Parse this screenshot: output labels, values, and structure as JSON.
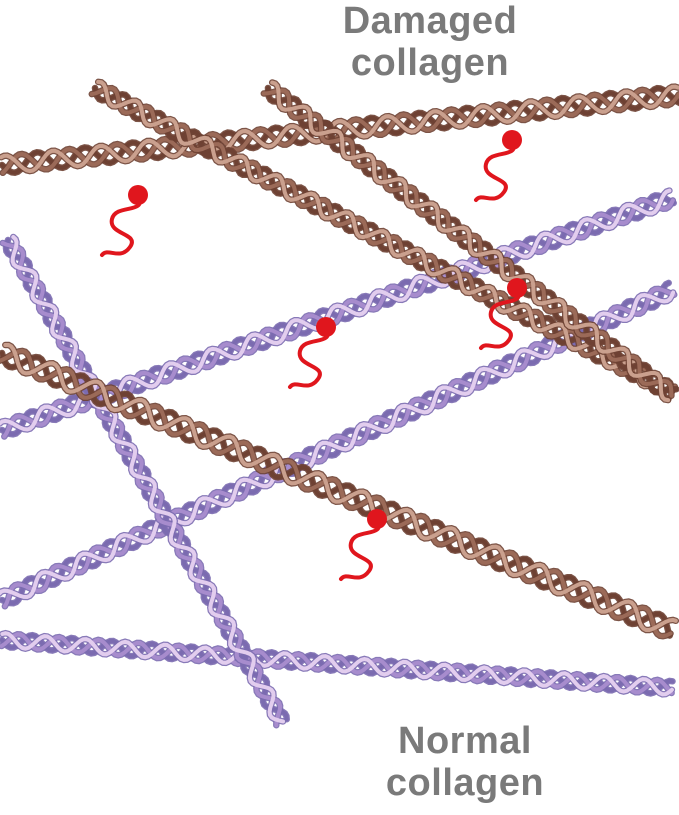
{
  "labels": {
    "damaged": [
      "Damaged",
      "collagen"
    ],
    "normal": [
      "Normal",
      "collagen"
    ]
  },
  "colors": {
    "damaged_dark": "#6e4133",
    "damaged_mid": "#9b6a58",
    "damaged_light": "#caa08e",
    "normal_dark": "#7b6bb0",
    "normal_mid": "#a78ccd",
    "normal_light": "#e2cdee",
    "crosslink": "#e0161d",
    "text": "#7a7a7a"
  },
  "legend_items": [
    {
      "kind": "damaged",
      "name": "Damaged collagen"
    },
    {
      "kind": "normal",
      "name": "Normal collagen"
    }
  ],
  "fibers": [
    {
      "kind": "damaged"
    },
    {
      "kind": "damaged"
    },
    {
      "kind": "damaged"
    },
    {
      "kind": "damaged"
    },
    {
      "kind": "normal"
    },
    {
      "kind": "normal"
    },
    {
      "kind": "normal"
    },
    {
      "kind": "normal"
    }
  ],
  "crosslink_count": 5
}
